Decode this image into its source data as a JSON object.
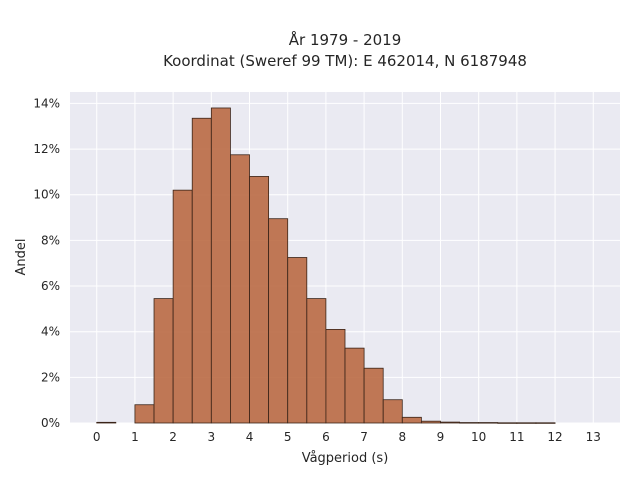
{
  "chart_data": {
    "type": "bar",
    "title_lines": [
      "År 1979 - 2019",
      "Koordinat (Sweref 99 TM): E 462014, N 6187948"
    ],
    "xlabel": "Vågperiod (s)",
    "ylabel": "Andel",
    "bin_width": 0.5,
    "bins": [
      {
        "x0": 0.0,
        "value": 0.0003
      },
      {
        "x0": 1.0,
        "value": 0.008
      },
      {
        "x0": 1.5,
        "value": 0.0545
      },
      {
        "x0": 2.0,
        "value": 0.102
      },
      {
        "x0": 2.5,
        "value": 0.1335
      },
      {
        "x0": 3.0,
        "value": 0.138
      },
      {
        "x0": 3.5,
        "value": 0.1175
      },
      {
        "x0": 4.0,
        "value": 0.108
      },
      {
        "x0": 4.5,
        "value": 0.0895
      },
      {
        "x0": 5.0,
        "value": 0.0725
      },
      {
        "x0": 5.5,
        "value": 0.0545
      },
      {
        "x0": 6.0,
        "value": 0.041
      },
      {
        "x0": 6.5,
        "value": 0.0328
      },
      {
        "x0": 7.0,
        "value": 0.024
      },
      {
        "x0": 7.5,
        "value": 0.0102
      },
      {
        "x0": 8.0,
        "value": 0.0025
      },
      {
        "x0": 8.5,
        "value": 0.0008
      },
      {
        "x0": 9.0,
        "value": 0.0004
      },
      {
        "x0": 9.5,
        "value": 0.0002
      },
      {
        "x0": 10.0,
        "value": 0.0002
      },
      {
        "x0": 10.5,
        "value": 0.0001
      },
      {
        "x0": 11.0,
        "value": 0.0001
      },
      {
        "x0": 11.5,
        "value": 0.0001
      }
    ],
    "xlim": [
      -0.7,
      13.7
    ],
    "ylim": [
      0,
      0.145
    ],
    "xticks": [
      "0",
      "1",
      "2",
      "3",
      "4",
      "5",
      "6",
      "7",
      "8",
      "9",
      "10",
      "11",
      "12",
      "13"
    ],
    "yticks": [
      "0%",
      "2%",
      "4%",
      "6%",
      "8%",
      "10%",
      "12%",
      "14%"
    ],
    "grid": true,
    "colors": {
      "bar": "#b8673f",
      "edge": "#3a2418",
      "background": "#eaeaf2",
      "grid": "#ffffff"
    }
  }
}
